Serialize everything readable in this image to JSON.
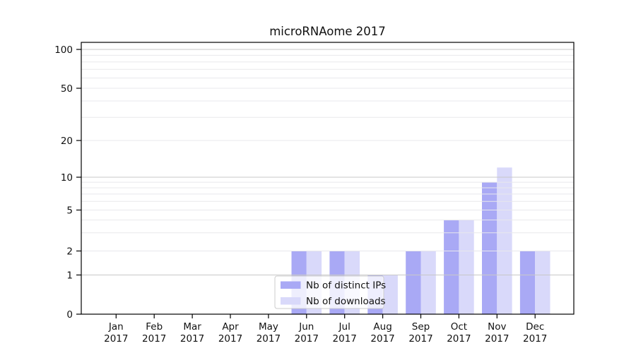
{
  "chart_data": {
    "type": "bar",
    "title": "microRNAome 2017",
    "xlabel": "",
    "ylabel": "",
    "year_label": "2017",
    "categories": [
      "Jan",
      "Feb",
      "Mar",
      "Apr",
      "May",
      "Jun",
      "Jul",
      "Aug",
      "Sep",
      "Oct",
      "Nov",
      "Dec"
    ],
    "series": [
      {
        "name": "Nb of distinct IPs",
        "color": "#a9a9f5",
        "values": [
          0,
          0,
          0,
          0,
          0,
          2,
          2,
          1,
          2,
          4,
          9,
          2
        ]
      },
      {
        "name": "Nb of downloads",
        "color": "#d9d9fa",
        "values": [
          0,
          0,
          0,
          0,
          0,
          2,
          2,
          1,
          2,
          4,
          12,
          2
        ]
      }
    ],
    "yticks": [
      0,
      1,
      2,
      5,
      10,
      20,
      50,
      100
    ],
    "ylim": [
      0,
      113
    ],
    "yscale": "log-above-1",
    "grid": "horizontal, log minor gridlines",
    "legend_position": "lower center inside plot",
    "colors": {
      "major_grid": "#c8c8c8",
      "minor_grid": "#e8e8ec",
      "axis": "#000000",
      "legend_border": "#cccccc",
      "legend_bg": "rgba(255,255,255,0.8)"
    }
  }
}
